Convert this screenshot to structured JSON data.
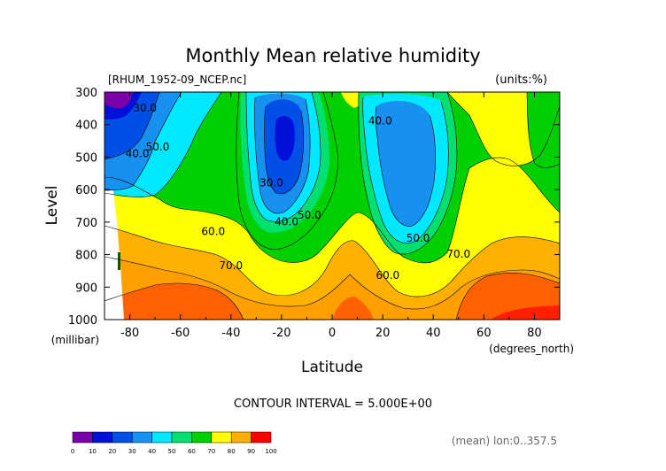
{
  "chart_data": {
    "type": "heatmap",
    "title": "Monthly Mean relative humidity",
    "subtitle_left": "[RHUM_1952-09_NCEP.nc]",
    "subtitle_right": "(units:%)",
    "xlabel": "Latitude",
    "x_units": "(degrees_north)",
    "ylabel": "Level",
    "y_units": "(millibar)",
    "xlim": [
      -90,
      90
    ],
    "ylim": [
      1000,
      300
    ],
    "x_ticks": [
      -80,
      -60,
      -40,
      -20,
      0,
      20,
      40,
      60,
      80
    ],
    "y_ticks": [
      300,
      400,
      500,
      600,
      700,
      800,
      900,
      1000
    ],
    "x_ticks_labels": [
      "-80",
      "-60",
      "-40",
      "-20",
      "0",
      "20",
      "40",
      "60",
      "80"
    ],
    "y_ticks_labels": [
      "300",
      "400",
      "500",
      "600",
      "700",
      "800",
      "900",
      "1000"
    ],
    "contour_interval_text": "CONTOUR INTERVAL = 5.000E+00",
    "footer_text": "(mean) lon:0..357.5",
    "colorbar": {
      "colors": [
        "#7a00aa",
        "#0010d8",
        "#0050e8",
        "#1890f0",
        "#00e8ff",
        "#00e070",
        "#00d000",
        "#ffff00",
        "#ffb000",
        "#ff6000",
        "#ff0000"
      ],
      "tick_labels": [
        "0",
        "10",
        "20",
        "30",
        "40",
        "50",
        "60",
        "70",
        "80",
        "90",
        "100"
      ]
    },
    "contour_labels": [
      {
        "text": "30.0",
        "lat": -74,
        "level": 360
      },
      {
        "text": "40.0",
        "lat": -77,
        "level": 500
      },
      {
        "text": "50.0",
        "lat": -69,
        "level": 480
      },
      {
        "text": "60.0",
        "lat": -47,
        "level": 740
      },
      {
        "text": "70.0",
        "lat": -40,
        "level": 845
      },
      {
        "text": "30.0",
        "lat": -24,
        "level": 590
      },
      {
        "text": "40.0",
        "lat": -18,
        "level": 710
      },
      {
        "text": "50.0",
        "lat": -9,
        "level": 690
      },
      {
        "text": "40.0",
        "lat": 19,
        "level": 400
      },
      {
        "text": "50.0",
        "lat": 34,
        "level": 760
      },
      {
        "text": "60.0",
        "lat": 22,
        "level": 875
      },
      {
        "text": "70.0",
        "lat": 50,
        "level": 810
      }
    ],
    "grid": false,
    "legend": "bottom-left"
  }
}
